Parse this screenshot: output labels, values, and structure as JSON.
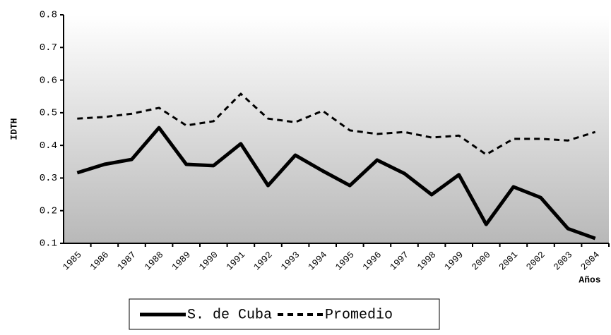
{
  "chart_data": {
    "type": "line",
    "x_label": "Años",
    "y_label": "IDTH",
    "categories": [
      "1985",
      "1986",
      "1987",
      "1988",
      "1989",
      "1990",
      "1991",
      "1992",
      "1993",
      "1994",
      "1995",
      "1996",
      "1997",
      "1998",
      "1999",
      "2000",
      "2001",
      "2002",
      "2003",
      "2004"
    ],
    "series": [
      {
        "name": "S. de Cuba",
        "color": "#000000",
        "style": "solid",
        "values": [
          0.316,
          0.342,
          0.357,
          0.454,
          0.342,
          0.338,
          0.405,
          0.277,
          0.37,
          0.322,
          0.277,
          0.355,
          0.314,
          0.249,
          0.31,
          0.158,
          0.273,
          0.24,
          0.145,
          0.115
        ]
      },
      {
        "name": "Promedio",
        "color": "#000000",
        "style": "dashed",
        "values": [
          0.482,
          0.487,
          0.497,
          0.515,
          0.461,
          0.474,
          0.558,
          0.482,
          0.471,
          0.506,
          0.446,
          0.435,
          0.441,
          0.424,
          0.43,
          0.372,
          0.42,
          0.42,
          0.415,
          0.441
        ]
      }
    ],
    "ylim": [
      0.1,
      0.8
    ],
    "yticks": [
      0.1,
      0.2,
      0.3,
      0.4,
      0.5,
      0.6,
      0.7,
      0.8
    ]
  }
}
